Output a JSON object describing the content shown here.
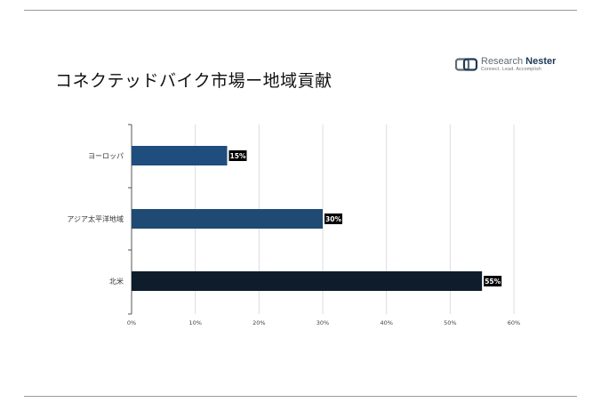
{
  "header": {
    "title": "コネクテッドバイク市場ー地域貢献"
  },
  "logo": {
    "name_part1": "Research",
    "name_part2": "Nester",
    "tagline": "Connect. Lead. Accomplish",
    "icon": "research-nester-logo-icon"
  },
  "colors": {
    "bar_europe": "#1e4d7e",
    "bar_apac": "#1f4a73",
    "bar_na": "#0e1c2c",
    "label_bg": "#000000",
    "label_text": "#ffffff",
    "grid": "#dcdcdc",
    "axis": "#555555"
  },
  "chart_data": {
    "type": "bar",
    "orientation": "horizontal",
    "categories": [
      "ヨーロッパ",
      "アジア太平洋地域",
      "北米"
    ],
    "values": [
      15,
      30,
      55
    ],
    "data_labels": [
      "15%",
      "30%",
      "55%"
    ],
    "xlim": [
      0,
      60
    ],
    "xticks": [
      0,
      10,
      20,
      30,
      40,
      50,
      60
    ],
    "xtick_labels": [
      "0%",
      "10%",
      "20%",
      "30%",
      "40%",
      "50%",
      "60%"
    ],
    "grid": true,
    "legend": "none"
  }
}
